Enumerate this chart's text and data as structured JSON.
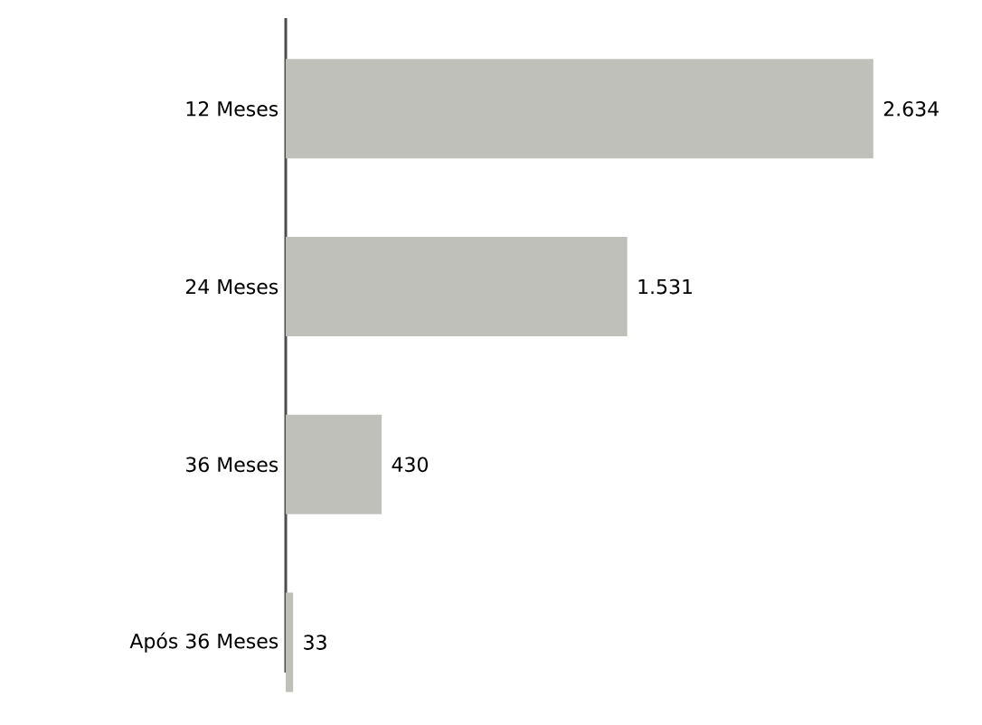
{
  "chart_data": {
    "type": "bar",
    "orientation": "horizontal",
    "categories": [
      "12 Meses",
      "24 Meses",
      "36 Meses",
      "Após 36 Meses"
    ],
    "values": [
      2634,
      1531,
      430,
      33
    ],
    "value_labels": [
      "2.634",
      "1.531",
      "430",
      "33"
    ],
    "color": "#c0c0bb"
  }
}
